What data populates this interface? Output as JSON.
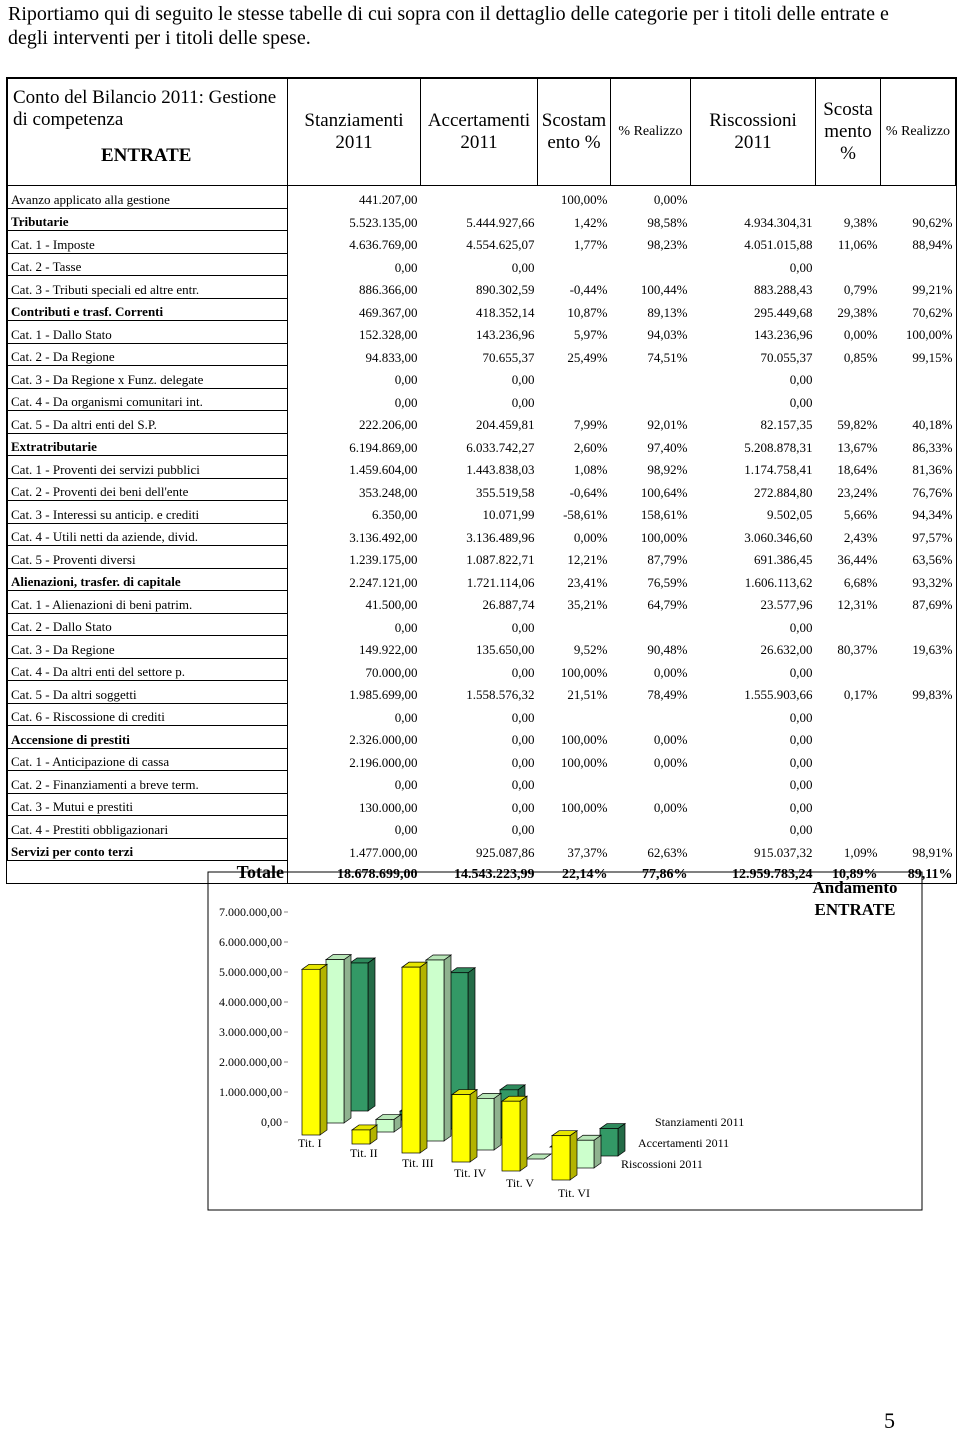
{
  "intro": "Riportiamo qui di seguito le stesse tabelle di cui sopra con il dettaglio delle categorie per i titoli delle entrate e degli interventi per i titoli delle spese.",
  "table": {
    "header": [
      "Conto del Bilancio 2011: Gestione di competenza",
      "Stanziamenti 2011",
      "Accertamenti 2011",
      "Scostamento %",
      "% Realizzo",
      "Riscossioni 2011",
      "Scostamento %",
      "% Realizzo"
    ],
    "section": "ENTRATE",
    "rows": [
      {
        "label": "Avanzo applicato alla gestione",
        "bold": false,
        "cells": [
          "441.207,00",
          null,
          "100,00%",
          "0,00%",
          null,
          null,
          null
        ]
      },
      {
        "label": "Tributarie",
        "bold": true,
        "cells": [
          "5.523.135,00",
          "5.444.927,66",
          "1,42%",
          "98,58%",
          "4.934.304,31",
          "9,38%",
          "90,62%"
        ]
      },
      {
        "label": "Cat. 1 - Imposte",
        "bold": false,
        "cells": [
          "4.636.769,00",
          "4.554.625,07",
          "1,77%",
          "98,23%",
          "4.051.015,88",
          "11,06%",
          "88,94%"
        ]
      },
      {
        "label": "Cat. 2 - Tasse",
        "bold": false,
        "cells": [
          "0,00",
          "0,00",
          null,
          null,
          "0,00",
          null,
          null
        ]
      },
      {
        "label": "Cat. 3 - Tributi speciali ed altre entr.",
        "bold": false,
        "cells": [
          "886.366,00",
          "890.302,59",
          "-0,44%",
          "100,44%",
          "883.288,43",
          "0,79%",
          "99,21%"
        ]
      },
      {
        "label": "Contributi e trasf. Correnti",
        "bold": true,
        "cells": [
          "469.367,00",
          "418.352,14",
          "10,87%",
          "89,13%",
          "295.449,68",
          "29,38%",
          "70,62%"
        ]
      },
      {
        "label": "Cat. 1 - Dallo Stato",
        "bold": false,
        "cells": [
          "152.328,00",
          "143.236,96",
          "5,97%",
          "94,03%",
          "143.236,96",
          "0,00%",
          "100,00%"
        ]
      },
      {
        "label": "Cat. 2 - Da Regione",
        "bold": false,
        "cells": [
          "94.833,00",
          "70.655,37",
          "25,49%",
          "74,51%",
          "70.055,37",
          "0,85%",
          "99,15%"
        ]
      },
      {
        "label": "Cat. 3 - Da Regione x Funz. delegate",
        "bold": false,
        "cells": [
          "0,00",
          "0,00",
          null,
          null,
          "0,00",
          null,
          null
        ]
      },
      {
        "label": "Cat. 4 - Da organismi comunitari int.",
        "bold": false,
        "cells": [
          "0,00",
          "0,00",
          null,
          null,
          "0,00",
          null,
          null
        ]
      },
      {
        "label": "Cat. 5 - Da altri enti del S.P.",
        "bold": false,
        "cells": [
          "222.206,00",
          "204.459,81",
          "7,99%",
          "92,01%",
          "82.157,35",
          "59,82%",
          "40,18%"
        ]
      },
      {
        "label": "Extratributarie",
        "bold": true,
        "cells": [
          "6.194.869,00",
          "6.033.742,27",
          "2,60%",
          "97,40%",
          "5.208.878,31",
          "13,67%",
          "86,33%"
        ]
      },
      {
        "label": "Cat. 1 - Proventi dei servizi pubblici",
        "bold": false,
        "cells": [
          "1.459.604,00",
          "1.443.838,03",
          "1,08%",
          "98,92%",
          "1.174.758,41",
          "18,64%",
          "81,36%"
        ]
      },
      {
        "label": "Cat. 2 - Proventi dei beni dell'ente",
        "bold": false,
        "cells": [
          "353.248,00",
          "355.519,58",
          "-0,64%",
          "100,64%",
          "272.884,80",
          "23,24%",
          "76,76%"
        ]
      },
      {
        "label": "Cat. 3 - Interessi su anticip. e crediti",
        "bold": false,
        "cells": [
          "6.350,00",
          "10.071,99",
          "-58,61%",
          "158,61%",
          "9.502,05",
          "5,66%",
          "94,34%"
        ]
      },
      {
        "label": "Cat. 4 - Utili netti da aziende, divid.",
        "bold": false,
        "cells": [
          "3.136.492,00",
          "3.136.489,96",
          "0,00%",
          "100,00%",
          "3.060.346,60",
          "2,43%",
          "97,57%"
        ]
      },
      {
        "label": "Cat. 5 - Proventi diversi",
        "bold": false,
        "cells": [
          "1.239.175,00",
          "1.087.822,71",
          "12,21%",
          "87,79%",
          "691.386,45",
          "36,44%",
          "63,56%"
        ]
      },
      {
        "label": "Alienazioni, trasfer. di capitale",
        "bold": true,
        "cells": [
          "2.247.121,00",
          "1.721.114,06",
          "23,41%",
          "76,59%",
          "1.606.113,62",
          "6,68%",
          "93,32%"
        ]
      },
      {
        "label": "Cat. 1 - Alienazioni di beni patrim.",
        "bold": false,
        "cells": [
          "41.500,00",
          "26.887,74",
          "35,21%",
          "64,79%",
          "23.577,96",
          "12,31%",
          "87,69%"
        ]
      },
      {
        "label": "Cat. 2 - Dallo Stato",
        "bold": false,
        "cells": [
          "0,00",
          "0,00",
          null,
          null,
          "0,00",
          null,
          null
        ]
      },
      {
        "label": "Cat. 3 - Da Regione",
        "bold": false,
        "cells": [
          "149.922,00",
          "135.650,00",
          "9,52%",
          "90,48%",
          "26.632,00",
          "80,37%",
          "19,63%"
        ]
      },
      {
        "label": "Cat. 4 - Da altri enti del settore p.",
        "bold": false,
        "cells": [
          "70.000,00",
          "0,00",
          "100,00%",
          "0,00%",
          "0,00",
          null,
          null
        ]
      },
      {
        "label": "Cat. 5 - Da altri soggetti",
        "bold": false,
        "cells": [
          "1.985.699,00",
          "1.558.576,32",
          "21,51%",
          "78,49%",
          "1.555.903,66",
          "0,17%",
          "99,83%"
        ]
      },
      {
        "label": "Cat. 6 - Riscossione di crediti",
        "bold": false,
        "cells": [
          "0,00",
          "0,00",
          null,
          null,
          "0,00",
          null,
          null
        ]
      },
      {
        "label": "Accensione di prestiti",
        "bold": true,
        "cells": [
          "2.326.000,00",
          "0,00",
          "100,00%",
          "0,00%",
          "0,00",
          null,
          null
        ]
      },
      {
        "label": "Cat. 1 - Anticipazione di cassa",
        "bold": false,
        "cells": [
          "2.196.000,00",
          "0,00",
          "100,00%",
          "0,00%",
          "0,00",
          null,
          null
        ]
      },
      {
        "label": "Cat. 2 - Finanziamenti a breve term.",
        "bold": false,
        "cells": [
          "0,00",
          "0,00",
          null,
          null,
          "0,00",
          null,
          null
        ]
      },
      {
        "label": "Cat. 3 - Mutui e prestiti",
        "bold": false,
        "cells": [
          "130.000,00",
          "0,00",
          "100,00%",
          "0,00%",
          "0,00",
          null,
          null
        ]
      },
      {
        "label": "Cat. 4 - Prestiti obbligazionari",
        "bold": false,
        "cells": [
          "0,00",
          "0,00",
          null,
          null,
          "0,00",
          null,
          null
        ]
      },
      {
        "label": "Servizi per conto terzi",
        "bold": true,
        "cells": [
          "1.477.000,00",
          "925.087,86",
          "37,37%",
          "62,63%",
          "915.037,32",
          "1,09%",
          "98,91%"
        ]
      }
    ],
    "total": {
      "label": "Totale",
      "cells": [
        "18.678.699,00",
        "14.543.223,99",
        "22,14%",
        "77,86%",
        "12.959.783,24",
        "10,89%",
        "89,11%"
      ]
    }
  },
  "chart_data": {
    "type": "bar3d",
    "title": "Andamento ENTRATE",
    "categories": [
      "Tit. I",
      "Tit. II",
      "Tit. III",
      "Tit. IV",
      "Tit. V",
      "Tit. VI"
    ],
    "series": [
      {
        "name": "Stanziamenti 2011",
        "color": "#ffff00",
        "values": [
          5523135,
          469367,
          6194869,
          2247121,
          2326000,
          1477000
        ]
      },
      {
        "name": "Accertamenti 2011",
        "color": "#ccffcc",
        "values": [
          5444927.66,
          418352.14,
          6033742.27,
          1721114.06,
          0,
          925087.86
        ]
      },
      {
        "name": "Riscossioni 2011",
        "color": "#339966",
        "values": [
          4934304.31,
          295449.68,
          5208878.31,
          1606113.62,
          0,
          915037.32
        ]
      }
    ],
    "ylim": [
      0,
      7000000
    ],
    "yticks": [
      {
        "value": 0,
        "label": "0,00"
      },
      {
        "value": 1000000,
        "label": "1.000.000,00"
      },
      {
        "value": 2000000,
        "label": "2.000.000,00"
      },
      {
        "value": 3000000,
        "label": "3.000.000,00"
      },
      {
        "value": 4000000,
        "label": "4.000.000,00"
      },
      {
        "value": 5000000,
        "label": "5.000.000,00"
      },
      {
        "value": 6000000,
        "label": "6.000.000,00"
      },
      {
        "value": 7000000,
        "label": "7.000.000,00"
      }
    ]
  },
  "page_number": "5"
}
